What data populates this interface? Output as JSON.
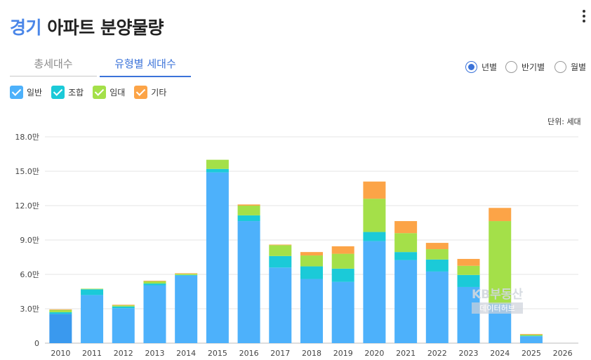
{
  "header": {
    "region": "경기",
    "title": "아파트 분양물량"
  },
  "tabs": [
    {
      "label": "총세대수",
      "active": false
    },
    {
      "label": "유형별 세대수",
      "active": true
    }
  ],
  "period_options": [
    {
      "label": "년별",
      "selected": true
    },
    {
      "label": "반기별",
      "selected": false
    },
    {
      "label": "월별",
      "selected": false
    }
  ],
  "unit_label": "단위: 세대",
  "watermark": {
    "line1": "KB부동산",
    "line2": "데이터허브"
  },
  "colors": {
    "accent": "#3b73d9",
    "일반": "#4db1fb",
    "조합": "#1bcad8",
    "임대": "#a4e049",
    "기타": "#fca447",
    "highlight": "#3a99ee"
  },
  "chart_data": {
    "type": "bar",
    "stacked": true,
    "categories": [
      "2010",
      "2011",
      "2012",
      "2013",
      "2014",
      "2015",
      "2016",
      "2017",
      "2018",
      "2019",
      "2020",
      "2021",
      "2022",
      "2023",
      "2024",
      "2025",
      "2026"
    ],
    "series": [
      {
        "name": "일반",
        "values": [
          25500,
          42000,
          30500,
          50500,
          59000,
          149000,
          106500,
          66000,
          56000,
          53500,
          89000,
          72500,
          62500,
          49000,
          34000,
          6000,
          0
        ]
      },
      {
        "name": "조합",
        "values": [
          1500,
          5000,
          1500,
          1500,
          500,
          3000,
          5000,
          10000,
          11000,
          11500,
          8000,
          7000,
          10500,
          10500,
          500,
          500,
          0
        ]
      },
      {
        "name": "임대",
        "values": [
          2000,
          500,
          1000,
          2000,
          1000,
          8000,
          8500,
          9500,
          9500,
          13000,
          29000,
          16500,
          9000,
          8000,
          72000,
          1000,
          0
        ]
      },
      {
        "name": "기타",
        "values": [
          500,
          0,
          500,
          500,
          500,
          0,
          1000,
          500,
          3000,
          6500,
          15000,
          10500,
          5500,
          6000,
          11500,
          500,
          0
        ]
      }
    ],
    "highlight_category": "2010",
    "y_tick_labels": [
      "0",
      "3.0만",
      "6.0만",
      "9.0만",
      "12.0만",
      "15.0만",
      "18.0만"
    ],
    "ylim": [
      0,
      180000
    ],
    "y_tick_step": 30000,
    "grid": true,
    "legend_position": "top-left"
  }
}
